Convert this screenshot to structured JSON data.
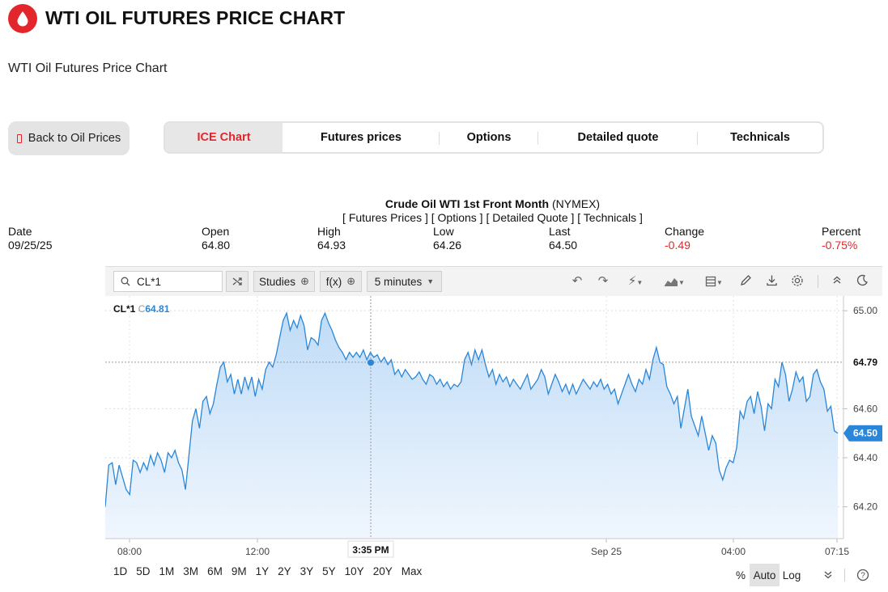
{
  "header": {
    "title": "WTI OIL FUTURES PRICE CHART",
    "subtitle": "WTI Oil Futures Price Chart",
    "brand_color": "#e3262b"
  },
  "nav": {
    "back_label": "Back to Oil Prices",
    "tabs": [
      {
        "label": "ICE Chart",
        "active": true
      },
      {
        "label": "Futures prices",
        "active": false
      },
      {
        "label": "Options",
        "active": false
      },
      {
        "label": "Detailed quote",
        "active": false
      },
      {
        "label": "Technicals",
        "active": false
      }
    ]
  },
  "quote": {
    "name": "Crude Oil WTI 1st Front Month",
    "exchange": "(NYMEX)",
    "links": "[ Futures Prices ] [ Options ] [ Detailed Quote ] [ Technicals ]",
    "columns": [
      {
        "label": "Date",
        "value": "09/25/25"
      },
      {
        "label": "Open",
        "value": "64.80"
      },
      {
        "label": "High",
        "value": "64.93"
      },
      {
        "label": "Low",
        "value": "64.26"
      },
      {
        "label": "Last",
        "value": "64.50"
      },
      {
        "label": "Change",
        "value": "-0.49"
      },
      {
        "label": "Percent",
        "value": "-0.75%"
      }
    ]
  },
  "toolbar": {
    "symbol": "CL*1",
    "studies_label": "Studies",
    "fx_label": "f(x)",
    "interval_label": "5 minutes",
    "icons": [
      "undo-icon",
      "redo-icon",
      "lightning-icon",
      "chart-type-icon",
      "layout-icon",
      "pencil-icon",
      "download-icon",
      "settings-icon",
      "collapse-icon",
      "dark-mode-icon"
    ]
  },
  "chart_data": {
    "type": "area",
    "symbol_label": "CL*1",
    "prefix": "C",
    "last_shown": "64.81",
    "y_ticks": [
      "65.00",
      "64.60",
      "64.40",
      "64.20"
    ],
    "ylim": [
      64.07,
      65.06
    ],
    "x_ticks": [
      "08:00",
      "12:00",
      "Sep 25",
      "04:00",
      "07:15"
    ],
    "crosshair_time": "3:35 PM",
    "crosshair_price": "64.79",
    "last_price": "64.50",
    "line_color": "#2a86d8",
    "values": [
      64.2,
      64.37,
      64.38,
      64.29,
      64.37,
      64.32,
      64.27,
      64.25,
      64.39,
      64.38,
      64.34,
      64.38,
      64.35,
      64.41,
      64.37,
      64.42,
      64.39,
      64.34,
      64.42,
      64.4,
      64.43,
      64.38,
      64.35,
      64.27,
      64.41,
      64.55,
      64.6,
      64.52,
      64.63,
      64.65,
      64.58,
      64.62,
      64.7,
      64.77,
      64.79,
      64.71,
      64.74,
      64.66,
      64.72,
      64.66,
      64.73,
      64.68,
      64.73,
      64.65,
      64.72,
      64.68,
      64.76,
      64.79,
      64.77,
      64.82,
      64.89,
      64.96,
      64.99,
      64.92,
      64.96,
      64.93,
      64.98,
      64.94,
      64.84,
      64.89,
      64.88,
      64.86,
      64.96,
      64.99,
      64.95,
      64.92,
      64.88,
      64.85,
      64.83,
      64.8,
      64.83,
      64.81,
      64.83,
      64.81,
      64.84,
      64.8,
      64.83,
      64.81,
      64.82,
      64.79,
      64.81,
      64.78,
      64.8,
      64.74,
      64.76,
      64.73,
      64.76,
      64.74,
      64.72,
      64.73,
      64.75,
      64.72,
      64.7,
      64.74,
      64.73,
      64.7,
      64.72,
      64.69,
      64.71,
      64.68,
      64.7,
      64.69,
      64.71,
      64.8,
      64.83,
      64.78,
      64.84,
      64.8,
      64.84,
      64.78,
      64.73,
      64.76,
      64.7,
      64.74,
      64.71,
      64.73,
      64.69,
      64.72,
      64.7,
      64.68,
      64.71,
      64.74,
      64.68,
      64.7,
      64.72,
      64.76,
      64.73,
      64.66,
      64.7,
      64.74,
      64.71,
      64.67,
      64.7,
      64.66,
      64.7,
      64.66,
      64.69,
      64.72,
      64.7,
      64.68,
      64.71,
      64.69,
      64.72,
      64.68,
      64.7,
      64.66,
      64.68,
      64.62,
      64.66,
      64.7,
      64.74,
      64.7,
      64.67,
      64.72,
      64.7,
      64.76,
      64.72,
      64.8,
      64.85,
      64.79,
      64.78,
      64.69,
      64.66,
      64.62,
      64.65,
      64.52,
      64.6,
      64.68,
      64.57,
      64.53,
      64.49,
      64.57,
      64.5,
      64.43,
      64.49,
      64.46,
      64.35,
      64.31,
      64.36,
      64.39,
      64.38,
      64.44,
      64.59,
      64.56,
      64.63,
      64.65,
      64.58,
      64.67,
      64.61,
      64.51,
      64.62,
      64.6,
      64.72,
      64.69,
      64.79,
      64.74,
      64.63,
      64.68,
      64.75,
      64.71,
      64.73,
      64.63,
      64.65,
      64.74,
      64.76,
      64.71,
      64.68,
      64.59,
      64.61,
      64.51,
      64.5
    ]
  },
  "footer": {
    "ranges": [
      "1D",
      "5D",
      "1M",
      "3M",
      "6M",
      "9M",
      "1Y",
      "2Y",
      "3Y",
      "5Y",
      "10Y",
      "20Y",
      "Max"
    ],
    "percent_label": "%",
    "auto_label": "Auto",
    "log_label": "Log"
  }
}
